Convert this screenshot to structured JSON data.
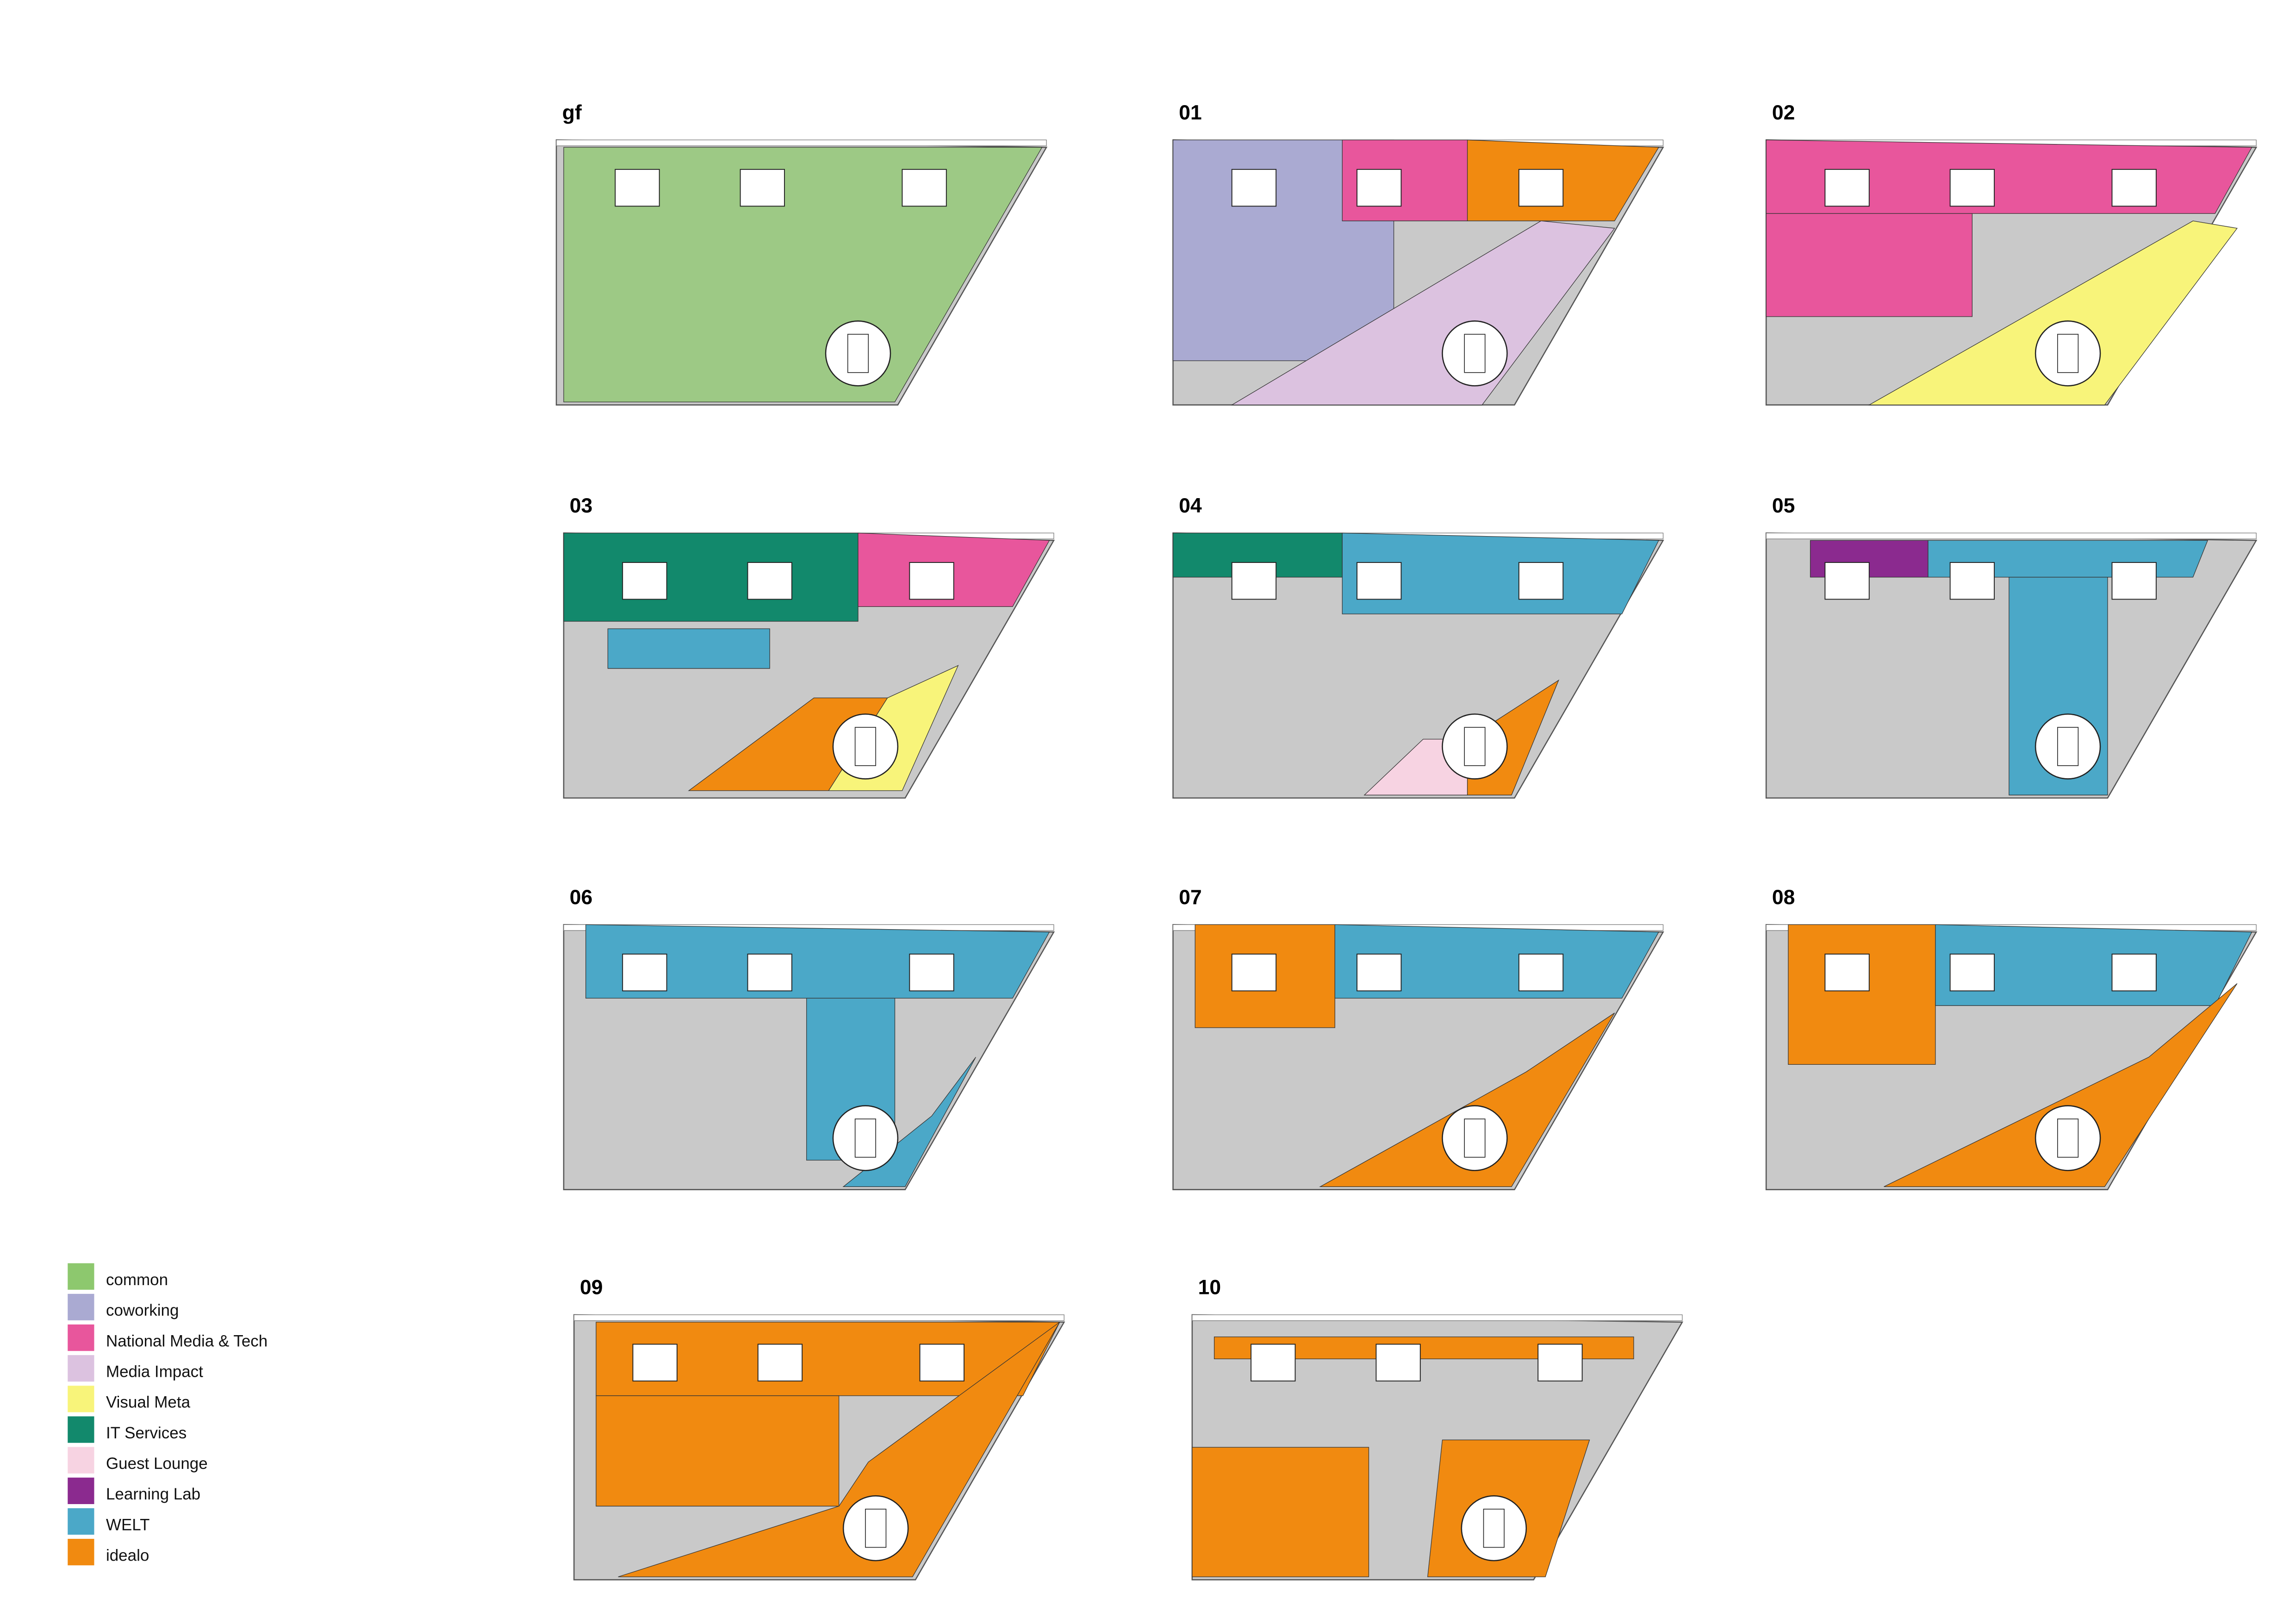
{
  "floors": [
    {
      "label": "gf"
    },
    {
      "label": "01"
    },
    {
      "label": "02"
    },
    {
      "label": "03"
    },
    {
      "label": "04"
    },
    {
      "label": "05"
    },
    {
      "label": "06"
    },
    {
      "label": "07"
    },
    {
      "label": "08"
    },
    {
      "label": "09"
    },
    {
      "label": "10"
    }
  ],
  "legend": {
    "items": [
      {
        "name": "common",
        "color": "#8dc86e"
      },
      {
        "name": "coworking",
        "color": "#aaaad2"
      },
      {
        "name": "National Media & Tech",
        "color": "#e8569c"
      },
      {
        "name": "Media Impact",
        "color": "#dcc2e0"
      },
      {
        "name": "Visual Meta",
        "color": "#f8f47a"
      },
      {
        "name": "IT Services",
        "color": "#12896c"
      },
      {
        "name": "Guest Lounge",
        "color": "#f7d3e2"
      },
      {
        "name": "Learning Lab",
        "color": "#8b2a8f"
      },
      {
        "name": "WELT",
        "color": "#4ba8c8"
      },
      {
        "name": "idealo",
        "color": "#f18a10"
      }
    ]
  }
}
